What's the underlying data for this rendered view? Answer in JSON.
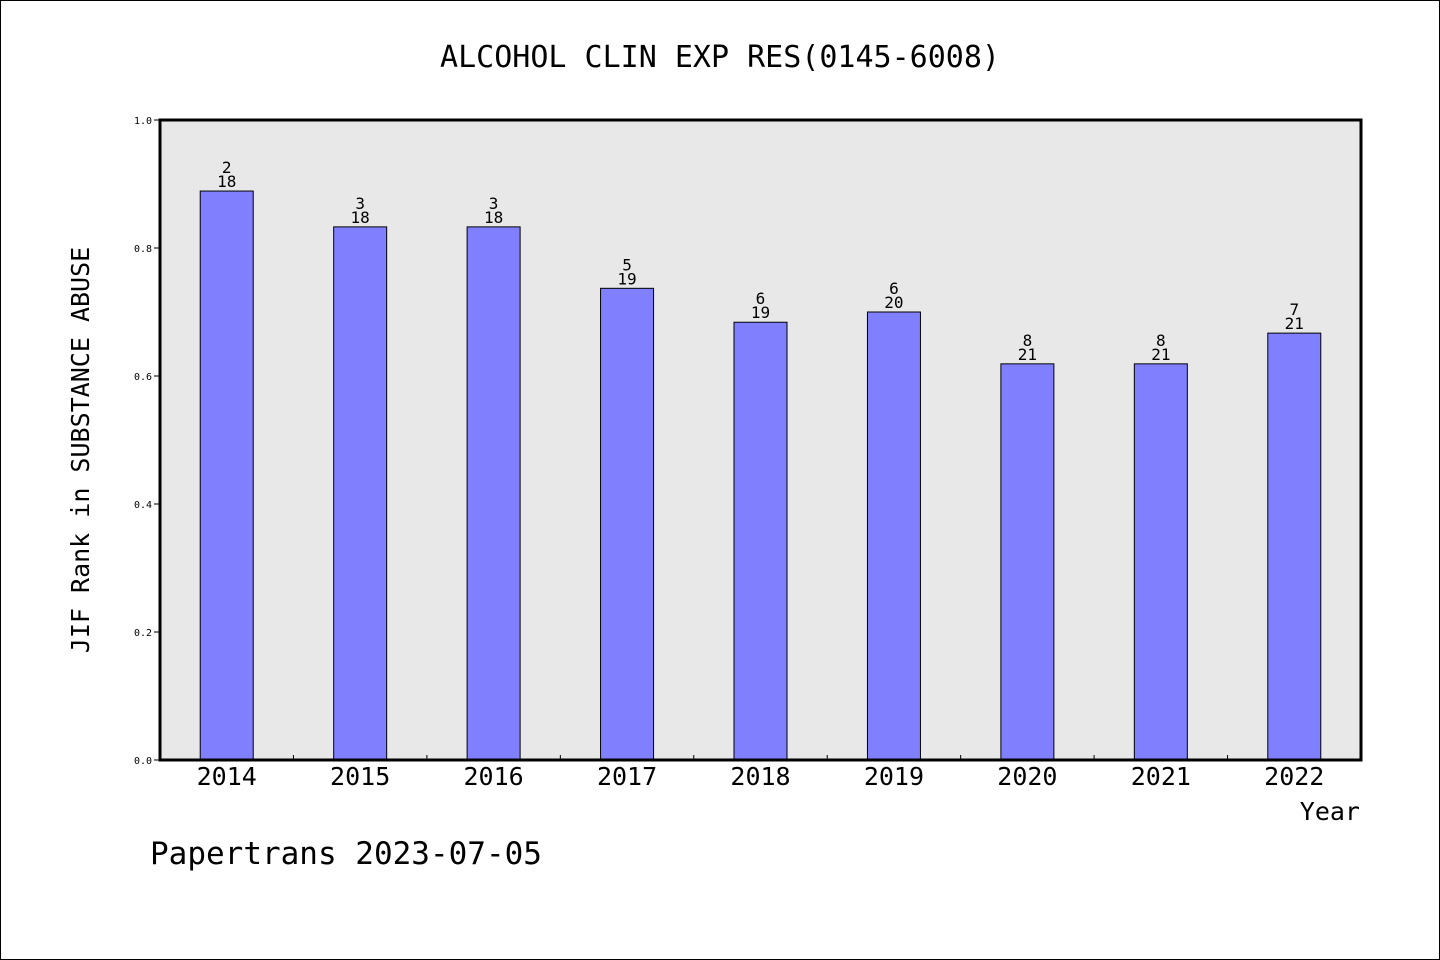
{
  "chart_data": {
    "type": "bar",
    "title": "ALCOHOL CLIN EXP RES(0145-6008)",
    "xlabel": "Year",
    "ylabel": "JIF Rank in SUBSTANCE ABUSE",
    "ylim": [
      0,
      1.0
    ],
    "yticks": [
      "0.0",
      "0.2",
      "0.4",
      "0.6",
      "0.8",
      "1.0"
    ],
    "categories": [
      "2014",
      "2015",
      "2016",
      "2017",
      "2018",
      "2019",
      "2020",
      "2021",
      "2022"
    ],
    "values": [
      0.889,
      0.833,
      0.833,
      0.737,
      0.684,
      0.7,
      0.619,
      0.619,
      0.667
    ],
    "rank": [
      "2",
      "3",
      "3",
      "5",
      "6",
      "6",
      "8",
      "8",
      "7"
    ],
    "total": [
      "18",
      "18",
      "18",
      "19",
      "19",
      "20",
      "21",
      "21",
      "21"
    ],
    "bar_color": "#8080ff",
    "plot_bg": "#e8e8e8",
    "grid": false
  },
  "footer": {
    "text": "Papertrans 2023-07-05"
  }
}
